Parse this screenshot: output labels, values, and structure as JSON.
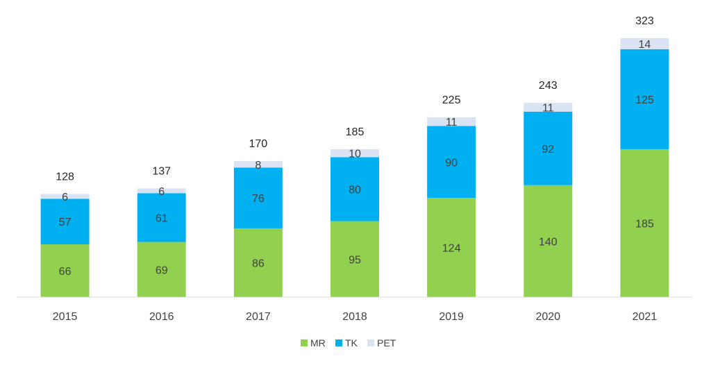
{
  "chart_data": {
    "type": "bar",
    "stacked": true,
    "categories": [
      "2015",
      "2016",
      "2017",
      "2018",
      "2019",
      "2020",
      "2021"
    ],
    "series": [
      {
        "name": "MR",
        "color": "#92d050",
        "values": [
          66,
          69,
          86,
          95,
          124,
          140,
          185
        ]
      },
      {
        "name": "TK",
        "color": "#00b0f0",
        "values": [
          57,
          61,
          76,
          80,
          90,
          92,
          125
        ]
      },
      {
        "name": "PET",
        "color": "#dae3f3",
        "values": [
          6,
          6,
          8,
          10,
          11,
          11,
          14
        ]
      }
    ],
    "totals": [
      128,
      137,
      170,
      185,
      225,
      243,
      323
    ],
    "ylim": [
      0,
      323
    ],
    "grid": false,
    "legend": "bottom-center",
    "data_label_color": "#404040"
  }
}
